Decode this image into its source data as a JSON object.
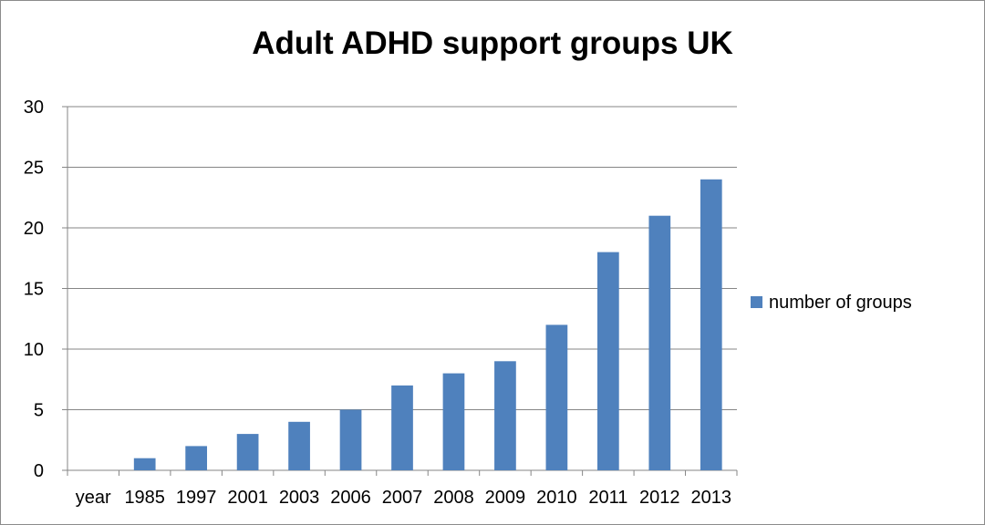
{
  "chart_data": {
    "type": "bar",
    "title": "Adult ADHD support groups UK",
    "xlabel": "",
    "ylabel": "",
    "categories": [
      "year",
      "1985",
      "1997",
      "2001",
      "2003",
      "2006",
      "2007",
      "2008",
      "2009",
      "2010",
      "2011",
      "2012",
      "2013"
    ],
    "series": [
      {
        "name": "number of groups",
        "values": [
          null,
          1,
          2,
          3,
          4,
          5,
          7,
          8,
          9,
          12,
          18,
          21,
          24
        ],
        "color": "#4f81bd"
      }
    ],
    "ylim": [
      0,
      30
    ],
    "yticks": [
      0,
      5,
      10,
      15,
      20,
      25,
      30
    ],
    "grid": true,
    "legend_position": "right"
  }
}
